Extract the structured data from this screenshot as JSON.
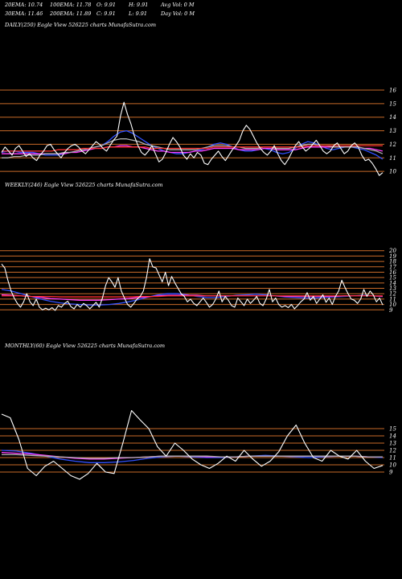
{
  "header": {
    "row1": [
      {
        "label": "20EMA: 10.74"
      },
      {
        "label": "100EMA: 11.78"
      },
      {
        "label": "O: 9.91"
      },
      {
        "label": "H: 9.91"
      },
      {
        "label": "Avg Vol: 0  M"
      }
    ],
    "row2": [
      {
        "label": "30EMA: 11.46"
      },
      {
        "label": "200EMA: 11.89"
      },
      {
        "label": "C: 9.91"
      },
      {
        "label": "L: 9.91"
      },
      {
        "label": "Day Vol: 0  M"
      }
    ]
  },
  "colors": {
    "background": "#000000",
    "gridline": "#c86a28",
    "price": "#ffffff",
    "ema_blue": "#3050ff",
    "ema_pink": "#ff40ff",
    "ema_gray": "#b0b0b0",
    "ema_red": "#ff3030"
  },
  "chart_data": [
    {
      "type": "line",
      "title": "DAILY(250) Eagle  View  526225 charts MunafaSutra.com",
      "ylim": [
        9,
        16
      ],
      "yticks": [
        "16",
        "15",
        "14",
        "13",
        "12",
        "11",
        "10"
      ],
      "series": [
        {
          "role": "price",
          "values": [
            11.4,
            11.8,
            11.5,
            11.2,
            11.7,
            11.9,
            11.5,
            11.1,
            11.3,
            11.0,
            10.8,
            11.2,
            11.5,
            11.9,
            12.0,
            11.6,
            11.3,
            11.0,
            11.4,
            11.7,
            11.9,
            12.0,
            11.8,
            11.5,
            11.3,
            11.6,
            11.9,
            12.2,
            12.0,
            11.7,
            11.5,
            11.9,
            12.3,
            12.6,
            14.1,
            15.1,
            14.2,
            13.5,
            12.6,
            11.9,
            11.4,
            11.2,
            11.5,
            11.9,
            11.3,
            10.7,
            10.9,
            11.4,
            12.0,
            12.5,
            12.2,
            11.8,
            11.2,
            10.9,
            11.3,
            11.0,
            11.4,
            11.2,
            10.6,
            10.5,
            10.9,
            11.2,
            11.5,
            11.1,
            10.8,
            11.2,
            11.6,
            11.9,
            12.3,
            13.0,
            13.4,
            13.1,
            12.6,
            12.1,
            11.7,
            11.4,
            11.2,
            11.5,
            11.9,
            11.3,
            10.8,
            10.5,
            10.9,
            11.4,
            11.9,
            12.2,
            11.8,
            11.5,
            11.7,
            12.0,
            12.3,
            11.9,
            11.5,
            11.3,
            11.5,
            11.9,
            12.1,
            11.7,
            11.3,
            11.5,
            11.9,
            12.1,
            11.8,
            11.2,
            10.8,
            10.9,
            10.6,
            10.2,
            9.7,
            9.91
          ]
        },
        {
          "role": "ema",
          "color": "#3050ff",
          "values": [
            11.4,
            11.5,
            11.5,
            11.4,
            11.4,
            11.4,
            11.3,
            11.2,
            11.2,
            11.2,
            11.3,
            11.4,
            11.5,
            11.6,
            11.7,
            11.8,
            11.9,
            12.2,
            12.6,
            12.9,
            13.0,
            12.8,
            12.5,
            12.2,
            11.9,
            11.7,
            11.5,
            11.4,
            11.3,
            11.3,
            11.4,
            11.5,
            11.6,
            11.8,
            12.0,
            12.1,
            12.0,
            11.8,
            11.6,
            11.5,
            11.5,
            11.6,
            11.7,
            11.6,
            11.4,
            11.3,
            11.4,
            11.7,
            12.0,
            12.2,
            12.1,
            11.9,
            11.7,
            11.6,
            11.7,
            11.8,
            11.8,
            11.7,
            11.6,
            11.4,
            11.2,
            10.9
          ]
        },
        {
          "role": "ema",
          "color": "#ff40ff",
          "values": [
            11.3,
            11.3,
            11.3,
            11.3,
            11.3,
            11.3,
            11.3,
            11.3,
            11.3,
            11.3,
            11.3,
            11.4,
            11.4,
            11.5,
            11.6,
            11.7,
            11.7,
            11.8,
            11.8,
            11.9,
            11.9,
            11.8,
            11.8,
            11.7,
            11.6,
            11.5,
            11.5,
            11.4,
            11.4,
            11.4,
            11.4,
            11.5,
            11.5,
            11.6,
            11.7,
            11.7,
            11.7,
            11.7,
            11.6,
            11.6,
            11.6,
            11.6,
            11.7,
            11.7,
            11.6,
            11.6,
            11.6,
            11.6,
            11.7,
            11.8,
            11.8,
            11.8,
            11.8,
            11.8,
            11.8,
            11.8,
            11.8,
            11.8,
            11.7,
            11.7,
            11.6,
            11.5
          ]
        },
        {
          "role": "ema",
          "color": "#b0b0b0",
          "values": [
            11.0,
            11.0,
            11.1,
            11.1,
            11.2,
            11.2,
            11.2,
            11.3,
            11.3,
            11.3,
            11.4,
            11.4,
            11.5,
            11.6,
            11.7,
            11.8,
            11.9,
            12.1,
            12.3,
            12.4,
            12.4,
            12.3,
            12.2,
            12.0,
            11.9,
            11.8,
            11.7,
            11.6,
            11.6,
            11.6,
            11.6,
            11.6,
            11.7,
            11.8,
            11.9,
            11.9,
            11.9,
            11.8,
            11.8,
            11.7,
            11.7,
            11.7,
            11.8,
            11.8,
            11.7,
            11.7,
            11.7,
            11.8,
            11.9,
            12.0,
            12.0,
            11.9,
            11.9,
            11.8,
            11.8,
            11.8,
            11.8,
            11.8,
            11.7,
            11.6,
            11.5,
            11.3
          ]
        },
        {
          "role": "ema",
          "color": "#ff3030",
          "values": [
            11.5,
            11.5,
            11.5,
            11.5,
            11.5,
            11.5,
            11.5,
            11.5,
            11.5,
            11.6,
            11.6,
            11.6,
            11.6,
            11.7,
            11.7,
            11.7,
            11.7,
            11.8,
            11.8,
            11.8,
            11.8,
            11.8,
            11.8,
            11.8,
            11.7,
            11.7,
            11.7,
            11.7,
            11.7,
            11.7,
            11.7,
            11.7,
            11.7,
            11.7,
            11.8,
            11.8,
            11.8,
            11.8,
            11.8,
            11.8,
            11.8,
            11.8,
            11.8,
            11.8,
            11.8,
            11.8,
            11.8,
            11.8,
            11.8,
            11.9,
            11.9,
            11.9,
            11.9,
            11.9,
            11.9,
            11.9,
            11.9,
            11.9,
            11.9,
            11.9,
            11.9,
            11.9
          ]
        }
      ]
    },
    {
      "type": "line",
      "title": "WEEKLY(246) Eagle  View  526225 charts MunafaSutra.com",
      "ylim": [
        8,
        21
      ],
      "yticks": [
        "20",
        "19",
        "18",
        "17",
        "16",
        "15",
        "14",
        "13",
        "12",
        "11",
        "10",
        "9"
      ],
      "series": [
        {
          "role": "price",
          "values": [
            17.5,
            16.8,
            14.5,
            12.5,
            11.2,
            10.2,
            9.5,
            10.5,
            12.0,
            10.5,
            9.8,
            11.0,
            9.5,
            9.0,
            9.3,
            9.0,
            9.4,
            8.9,
            9.8,
            9.5,
            10.2,
            10.6,
            9.6,
            9.2,
            10.0,
            9.5,
            10.2,
            9.8,
            9.2,
            9.8,
            10.4,
            9.5,
            11.2,
            13.5,
            15.0,
            14.2,
            13.2,
            15.0,
            12.5,
            11.2,
            10.0,
            9.5,
            10.2,
            11.0,
            11.5,
            12.5,
            15.0,
            18.5,
            17.0,
            16.8,
            15.5,
            14.2,
            16.0,
            13.5,
            15.2,
            14.0,
            13.0,
            12.0,
            11.5,
            10.5,
            11.0,
            10.2,
            9.8,
            10.5,
            11.2,
            10.4,
            9.5,
            10.0,
            11.0,
            12.5,
            10.5,
            11.5,
            10.8,
            9.8,
            9.5,
            11.2,
            10.5,
            9.8,
            11.0,
            10.2,
            10.8,
            11.5,
            10.2,
            9.8,
            11.0,
            12.8,
            10.5,
            11.2,
            10.0,
            9.5,
            9.8,
            9.4,
            10.0,
            9.2,
            9.8,
            10.5,
            11.0,
            12.2,
            10.8,
            11.5,
            10.2,
            11.0,
            11.8,
            10.4,
            11.2,
            10.0,
            11.5,
            12.5,
            14.5,
            13.2,
            12.0,
            11.0,
            10.8,
            10.2,
            11.0,
            12.8,
            11.5,
            12.5,
            11.8,
            10.5,
            11.2,
            9.91
          ]
        },
        {
          "role": "ema",
          "color": "#3050ff",
          "values": [
            12.8,
            12.5,
            12.0,
            11.5,
            11.0,
            10.6,
            10.3,
            10.1,
            10.0,
            9.9,
            9.9,
            10.0,
            10.2,
            10.5,
            10.9,
            11.4,
            11.8,
            12.0,
            12.0,
            11.8,
            11.5,
            11.3,
            11.3,
            11.5,
            11.7,
            11.8,
            11.9,
            11.8,
            11.6,
            11.4,
            11.3,
            11.2,
            11.2,
            11.3,
            11.4,
            11.5,
            11.6,
            11.7,
            11.6,
            11.5
          ]
        },
        {
          "role": "ema",
          "color": "#ff40ff",
          "values": [
            11.8,
            11.7,
            11.6,
            11.5,
            11.3,
            11.1,
            11.0,
            10.9,
            10.8,
            10.8,
            10.8,
            10.9,
            11.0,
            11.1,
            11.3,
            11.4,
            11.6,
            11.7,
            11.7,
            11.7,
            11.7,
            11.6,
            11.6,
            11.6,
            11.6,
            11.6,
            11.6,
            11.6,
            11.6,
            11.5,
            11.5,
            11.5,
            11.5,
            11.5,
            11.5,
            11.6,
            11.6,
            11.6,
            11.6,
            11.5
          ]
        },
        {
          "role": "ema",
          "color": "#ff3030",
          "values": [
            11.6,
            11.6,
            11.6,
            11.5,
            11.5,
            11.5,
            11.4,
            11.4,
            11.4,
            11.4,
            11.4,
            11.4,
            11.4,
            11.4,
            11.5,
            11.5,
            11.5,
            11.6,
            11.6,
            11.6,
            11.6,
            11.6,
            11.6,
            11.6,
            11.6,
            11.6,
            11.6,
            11.6,
            11.6,
            11.6,
            11.6,
            11.6,
            11.6,
            11.6,
            11.6,
            11.6,
            11.6,
            11.6,
            11.6,
            11.6
          ]
        }
      ]
    },
    {
      "type": "line",
      "title": "MONTHLY(60) Eagle  View  526225 charts MunafaSutra.com",
      "ylim": [
        7,
        17
      ],
      "yticks": [
        "15",
        "14",
        "13",
        "12",
        "11",
        "10",
        "9"
      ],
      "series": [
        {
          "role": "price",
          "values": [
            17.0,
            16.5,
            13.5,
            9.5,
            8.5,
            9.8,
            10.5,
            9.5,
            8.5,
            8.0,
            8.8,
            10.2,
            9.0,
            8.8,
            13.0,
            17.5,
            16.2,
            15.0,
            12.5,
            11.2,
            13.0,
            12.0,
            10.8,
            10.0,
            9.5,
            10.2,
            11.2,
            10.5,
            12.0,
            10.8,
            9.8,
            10.5,
            11.8,
            14.0,
            15.5,
            13.0,
            11.0,
            10.5,
            12.0,
            11.2,
            10.8,
            12.0,
            10.5,
            9.5,
            9.91
          ]
        },
        {
          "role": "ema",
          "color": "#3050ff",
          "values": [
            12.0,
            11.9,
            11.6,
            11.2,
            10.8,
            10.5,
            10.3,
            10.3,
            10.4,
            10.6,
            10.9,
            11.1,
            11.2,
            11.1,
            11.0,
            11.0,
            11.1,
            11.2,
            11.3,
            11.2,
            11.1,
            11.0,
            11.1,
            11.2,
            11.2,
            11.1,
            11.0
          ]
        },
        {
          "role": "ema",
          "color": "#ff40ff",
          "values": [
            11.7,
            11.6,
            11.5,
            11.3,
            11.1,
            10.9,
            10.8,
            10.8,
            10.9,
            11.0,
            11.1,
            11.2,
            11.2,
            11.2,
            11.1,
            11.1,
            11.1,
            11.2,
            11.2,
            11.2,
            11.2,
            11.2,
            11.2,
            11.2,
            11.2,
            11.1,
            11.1
          ]
        },
        {
          "role": "ema",
          "color": "#b0b0b0",
          "values": [
            11.4,
            11.4,
            11.3,
            11.2,
            11.1,
            11.0,
            10.9,
            10.9,
            11.0,
            11.0,
            11.1,
            11.2,
            11.2,
            11.2,
            11.2,
            11.1,
            11.1,
            11.2,
            11.2,
            11.2,
            11.2,
            11.2,
            11.2,
            11.2,
            11.2,
            11.1,
            11.1
          ]
        }
      ]
    }
  ]
}
